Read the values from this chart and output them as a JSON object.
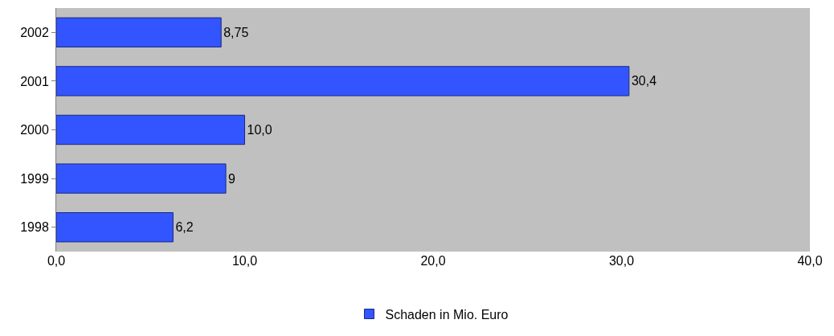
{
  "chart_data": {
    "type": "bar",
    "orientation": "horizontal",
    "categories": [
      "2002",
      "2001",
      "2000",
      "1999",
      "1998"
    ],
    "series": [
      {
        "name": "Schaden in Mio. Euro",
        "color": "#3355ff",
        "values": [
          8.75,
          30.4,
          10.0,
          9,
          6.2
        ],
        "value_labels": [
          "8,75",
          "30,4",
          "10,0",
          "9",
          "6,2"
        ]
      }
    ],
    "xlim": [
      0,
      40
    ],
    "xticks": [
      {
        "value": 0,
        "label": "0,0"
      },
      {
        "value": 10,
        "label": "10,0"
      },
      {
        "value": 20,
        "label": "20,0"
      },
      {
        "value": 30,
        "label": "30,0"
      },
      {
        "value": 40,
        "label": "40,0"
      }
    ],
    "grid": false,
    "legend": "bottom"
  }
}
